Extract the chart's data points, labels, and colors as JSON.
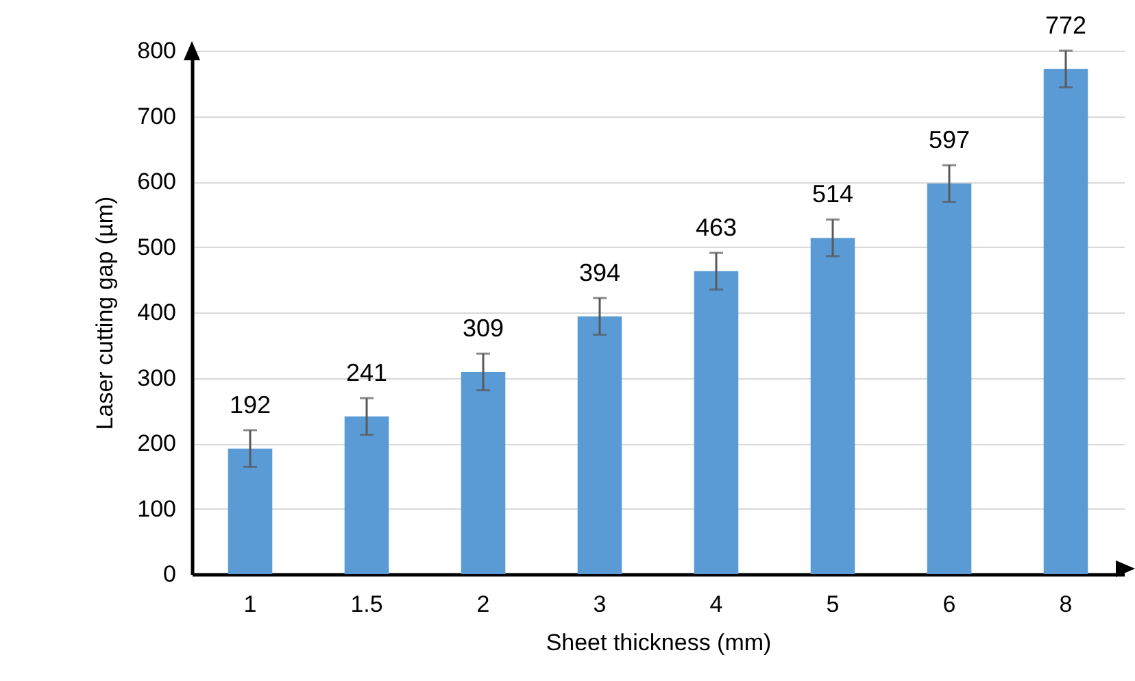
{
  "chart_data": {
    "type": "bar",
    "xlabel": "Sheet thickness (mm)",
    "ylabel": "Laser cutting gap (µm)",
    "categories": [
      "1",
      "1.5",
      "2",
      "3",
      "4",
      "5",
      "6",
      "8"
    ],
    "values": [
      192,
      241,
      309,
      394,
      463,
      514,
      597,
      772
    ],
    "errors": [
      28,
      28,
      28,
      28,
      28,
      28,
      28,
      28
    ],
    "color": "#5b9bd5",
    "ylim": [
      0,
      800
    ],
    "yticks": [
      0,
      100,
      200,
      300,
      400,
      500,
      600,
      700,
      800
    ],
    "grid": "y",
    "data_labels": true
  }
}
